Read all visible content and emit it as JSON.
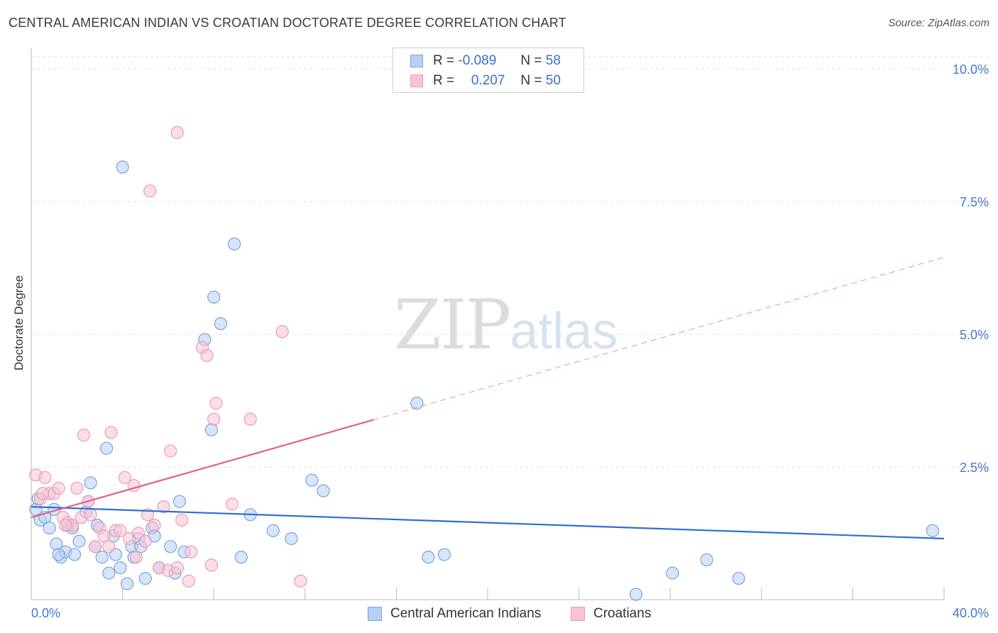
{
  "title": "CENTRAL AMERICAN INDIAN VS CROATIAN DOCTORATE DEGREE CORRELATION CHART",
  "source": "Source: ZipAtlas.com",
  "watermark": {
    "zip": "ZIP",
    "atlas": "atlas"
  },
  "legend": {
    "r_label": "R =",
    "n_label": "N =",
    "rows": [
      {
        "r": "-0.089",
        "n": "58"
      },
      {
        "r": "0.207",
        "n": "50"
      }
    ]
  },
  "colors": {
    "blue_fill": "#b8d0f3",
    "blue_stroke": "#7aa3de",
    "blue_line": "#2f6fd0",
    "pink_fill": "#f8c4d4",
    "pink_stroke": "#ee9ab5",
    "pink_line": "#e0608c",
    "tick": "#4a77c8",
    "grid": "#e0e0e0"
  },
  "chart_data": {
    "type": "scatter",
    "title": "CENTRAL AMERICAN INDIAN VS CROATIAN DOCTORATE DEGREE CORRELATION CHART",
    "xlabel": "",
    "ylabel": "Doctorate Degree",
    "xlim": [
      0,
      40
    ],
    "ylim": [
      0,
      10.5
    ],
    "x_tick_labels": [
      "0.0%",
      "40.0%"
    ],
    "y_ticks": [
      2.5,
      5.0,
      7.5,
      10.0
    ],
    "y_tick_labels": [
      "2.5%",
      "5.0%",
      "7.5%",
      "10.0%"
    ],
    "series": [
      {
        "name": "Central American Indians",
        "r": -0.089,
        "n": 58,
        "trend": {
          "x0": 0,
          "y0": 1.75,
          "x1": 40,
          "y1": 1.15,
          "dashed_from": null
        },
        "points": [
          [
            0.2,
            1.7
          ],
          [
            0.4,
            1.5
          ],
          [
            0.6,
            1.55
          ],
          [
            0.8,
            1.35
          ],
          [
            1.0,
            1.7
          ],
          [
            1.1,
            1.05
          ],
          [
            1.3,
            0.8
          ],
          [
            1.5,
            0.9
          ],
          [
            1.6,
            1.4
          ],
          [
            1.8,
            1.35
          ],
          [
            1.9,
            0.85
          ],
          [
            2.1,
            1.1
          ],
          [
            2.4,
            1.65
          ],
          [
            2.5,
            1.85
          ],
          [
            2.6,
            2.2
          ],
          [
            2.8,
            1.0
          ],
          [
            2.9,
            1.4
          ],
          [
            3.1,
            0.8
          ],
          [
            3.3,
            2.85
          ],
          [
            3.4,
            0.5
          ],
          [
            3.6,
            1.2
          ],
          [
            3.7,
            0.85
          ],
          [
            3.9,
            0.6
          ],
          [
            4.0,
            8.15
          ],
          [
            4.2,
            0.3
          ],
          [
            4.4,
            1.0
          ],
          [
            4.5,
            0.8
          ],
          [
            4.7,
            1.15
          ],
          [
            4.8,
            1.0
          ],
          [
            5.0,
            0.4
          ],
          [
            5.3,
            1.35
          ],
          [
            5.4,
            1.2
          ],
          [
            5.6,
            0.6
          ],
          [
            6.1,
            1.0
          ],
          [
            6.3,
            0.5
          ],
          [
            6.5,
            1.85
          ],
          [
            6.7,
            0.9
          ],
          [
            7.6,
            4.9
          ],
          [
            7.9,
            3.2
          ],
          [
            8.0,
            5.7
          ],
          [
            8.3,
            5.2
          ],
          [
            8.9,
            6.7
          ],
          [
            9.2,
            0.8
          ],
          [
            9.6,
            1.6
          ],
          [
            10.6,
            1.3
          ],
          [
            11.4,
            1.15
          ],
          [
            12.3,
            2.25
          ],
          [
            12.8,
            2.05
          ],
          [
            16.9,
            3.7
          ],
          [
            17.4,
            0.8
          ],
          [
            18.1,
            0.85
          ],
          [
            26.5,
            0.1
          ],
          [
            28.1,
            0.5
          ],
          [
            29.6,
            0.75
          ],
          [
            31.0,
            0.4
          ],
          [
            39.5,
            1.3
          ],
          [
            0.3,
            1.9
          ],
          [
            1.2,
            0.85
          ]
        ]
      },
      {
        "name": "Croatians",
        "r": 0.207,
        "n": 50,
        "trend": {
          "x0": 0,
          "y0": 1.55,
          "x1": 40,
          "y1": 6.45,
          "dashed_from": 15
        },
        "points": [
          [
            0.2,
            2.35
          ],
          [
            0.4,
            1.9
          ],
          [
            0.6,
            2.3
          ],
          [
            0.8,
            2.0
          ],
          [
            1.0,
            2.0
          ],
          [
            1.2,
            2.1
          ],
          [
            1.4,
            1.55
          ],
          [
            1.6,
            1.45
          ],
          [
            1.8,
            1.4
          ],
          [
            2.0,
            2.1
          ],
          [
            2.2,
            1.55
          ],
          [
            2.3,
            3.1
          ],
          [
            2.5,
            1.85
          ],
          [
            2.6,
            1.6
          ],
          [
            2.8,
            1.0
          ],
          [
            3.0,
            1.35
          ],
          [
            3.2,
            1.2
          ],
          [
            3.4,
            1.0
          ],
          [
            3.5,
            3.15
          ],
          [
            3.7,
            1.3
          ],
          [
            3.9,
            1.3
          ],
          [
            4.1,
            2.3
          ],
          [
            4.3,
            1.15
          ],
          [
            4.5,
            2.15
          ],
          [
            4.7,
            1.25
          ],
          [
            5.0,
            1.1
          ],
          [
            5.1,
            1.6
          ],
          [
            5.2,
            7.7
          ],
          [
            5.4,
            1.4
          ],
          [
            5.6,
            0.6
          ],
          [
            5.8,
            1.75
          ],
          [
            6.0,
            0.55
          ],
          [
            6.1,
            2.8
          ],
          [
            6.4,
            0.6
          ],
          [
            6.6,
            1.5
          ],
          [
            6.9,
            0.35
          ],
          [
            7.0,
            0.9
          ],
          [
            7.5,
            4.75
          ],
          [
            7.7,
            4.6
          ],
          [
            7.9,
            0.65
          ],
          [
            8.0,
            3.4
          ],
          [
            8.1,
            3.7
          ],
          [
            8.8,
            1.8
          ],
          [
            9.6,
            3.4
          ],
          [
            11.0,
            5.05
          ],
          [
            11.8,
            0.35
          ],
          [
            6.4,
            8.8
          ],
          [
            0.5,
            2.0
          ],
          [
            1.5,
            1.4
          ],
          [
            4.6,
            0.8
          ]
        ]
      }
    ]
  }
}
